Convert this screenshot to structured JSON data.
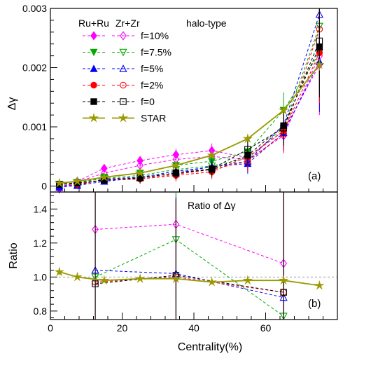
{
  "chart_data": [
    {
      "type": "line",
      "panel": "top",
      "ylabel": "Δγ",
      "xlabel": "",
      "panel_tag": "(a)",
      "xlim": [
        0,
        80
      ],
      "ylim": [
        -0.0001,
        0.003
      ],
      "xticks": [
        0,
        20,
        40,
        60
      ],
      "xtick_labels": [
        "",
        "",
        "",
        ""
      ],
      "yticks": [
        0,
        0.001,
        0.002,
        0.003
      ],
      "ytick_labels": [
        "0",
        "0.001",
        "0.002",
        "0.003"
      ],
      "legend": {
        "placement": "top-left",
        "col_headers": [
          "Ru+Ru",
          "Zr+Zr",
          "halo-type"
        ],
        "rows": [
          {
            "label": "f=10%",
            "color": "#ff00ff",
            "ru_marker": "diamond",
            "zr_marker": "diamond-open"
          },
          {
            "label": "f=7.5%",
            "color": "#00aa00",
            "ru_marker": "triangle-down",
            "zr_marker": "triangle-down-open"
          },
          {
            "label": "f=5%",
            "color": "#0000ff",
            "ru_marker": "triangle-up",
            "zr_marker": "triangle-up-open"
          },
          {
            "label": "f=2%",
            "color": "#ff0000",
            "ru_marker": "circle",
            "zr_marker": "circle-open"
          },
          {
            "label": "f=0",
            "color": "#000000",
            "ru_marker": "square",
            "zr_marker": "square-open"
          },
          {
            "label": "STAR",
            "color": "#999900",
            "ru_marker": "star",
            "zr_marker": "star"
          }
        ]
      },
      "series": [
        {
          "name": "Ru+Ru f=10%",
          "color": "#ff00ff",
          "marker": "diamond",
          "dashed": true,
          "x": [
            2.5,
            7.5,
            15,
            25,
            35,
            45,
            55,
            65,
            75
          ],
          "y": [
            -5e-05,
            8e-05,
            0.0003,
            0.00043,
            0.00053,
            0.0006,
            0.00048,
            0.00093,
            0.00205
          ],
          "err": [
            3e-05,
            3e-05,
            4e-05,
            8e-05,
            0.0001,
            0.00012,
            0.00017,
            0.0003,
            0.00085
          ]
        },
        {
          "name": "Zr+Zr f=10%",
          "color": "#ff00ff",
          "marker": "diamond-open",
          "dashed": true,
          "x": [
            2.5,
            7.5,
            15,
            25,
            35,
            45,
            55,
            65,
            75
          ],
          "y": [
            -4e-05,
            7e-05,
            0.00022,
            0.00035,
            0.00045,
            0.0005,
            0.00045,
            0.00085,
            0.0022
          ],
          "err": [
            3e-05,
            3e-05,
            4e-05,
            8e-05,
            0.0001,
            0.00012,
            0.00017,
            0.0003,
            0.00085
          ]
        },
        {
          "name": "Ru+Ru f=7.5%",
          "color": "#00aa00",
          "marker": "triangle-down",
          "dashed": true,
          "x": [
            2.5,
            7.5,
            15,
            25,
            35,
            45,
            55,
            65,
            75
          ],
          "y": [
            3e-05,
            6e-05,
            0.00015,
            0.00022,
            0.00035,
            0.00042,
            0.00058,
            0.00128,
            0.00225
          ],
          "err": [
            3e-05,
            3e-05,
            4e-05,
            8e-05,
            0.0001,
            0.00012,
            0.00017,
            0.0003,
            0.00085
          ]
        },
        {
          "name": "Zr+Zr f=7.5%",
          "color": "#00aa00",
          "marker": "triangle-down-open",
          "dashed": true,
          "x": [
            2.5,
            7.5,
            15,
            25,
            35,
            45,
            55,
            65,
            75
          ],
          "y": [
            3e-05,
            6e-05,
            0.00013,
            0.00018,
            0.00028,
            0.00034,
            0.00047,
            0.00098,
            0.0027
          ],
          "err": [
            3e-05,
            3e-05,
            4e-05,
            8e-05,
            0.0001,
            0.00012,
            0.00017,
            0.0003,
            0.00085
          ]
        },
        {
          "name": "Ru+Ru f=5%",
          "color": "#0000ff",
          "marker": "triangle-up",
          "dashed": true,
          "x": [
            2.5,
            7.5,
            15,
            25,
            35,
            45,
            55,
            65,
            75
          ],
          "y": [
            -2e-05,
            1e-05,
            8e-05,
            0.00014,
            0.00022,
            0.00033,
            0.00038,
            0.0009,
            0.0021
          ],
          "err": [
            3e-05,
            3e-05,
            4e-05,
            8e-05,
            0.0001,
            0.00012,
            0.00017,
            0.0003,
            0.00085
          ]
        },
        {
          "name": "Zr+Zr f=5%",
          "color": "#0000ff",
          "marker": "triangle-up-open",
          "dashed": true,
          "x": [
            2.5,
            7.5,
            15,
            25,
            35,
            45,
            55,
            65,
            75
          ],
          "y": [
            1e-05,
            1e-05,
            0.00012,
            0.00015,
            0.00025,
            0.00032,
            0.00042,
            0.00103,
            0.0029
          ],
          "err": [
            3e-05,
            3e-05,
            4e-05,
            8e-05,
            0.0001,
            0.00012,
            0.00017,
            0.0003,
            0.00085
          ]
        },
        {
          "name": "Ru+Ru f=2%",
          "color": "#ff0000",
          "marker": "circle",
          "dashed": true,
          "x": [
            2.5,
            7.5,
            15,
            25,
            35,
            45,
            55,
            65,
            75
          ],
          "y": [
            3e-05,
            3e-05,
            0.0001,
            0.00012,
            0.00018,
            0.00024,
            0.0005,
            0.00093,
            0.00225
          ],
          "err": [
            3e-05,
            3e-05,
            4e-05,
            8e-05,
            0.0001,
            0.00012,
            0.00017,
            0.0003,
            0.00085
          ]
        },
        {
          "name": "Zr+Zr f=2%",
          "color": "#ff0000",
          "marker": "circle-open",
          "dashed": true,
          "x": [
            2.5,
            7.5,
            15,
            25,
            35,
            45,
            55,
            65,
            75
          ],
          "y": [
            3e-05,
            3e-05,
            0.0001,
            0.00012,
            0.0002,
            0.00028,
            0.00042,
            0.00088,
            0.00265
          ],
          "err": [
            3e-05,
            3e-05,
            4e-05,
            8e-05,
            0.0001,
            0.00012,
            0.00017,
            0.0003,
            0.00085
          ]
        },
        {
          "name": "Ru+Ru f=0",
          "color": "#000000",
          "marker": "square",
          "dashed": true,
          "x": [
            2.5,
            7.5,
            15,
            25,
            35,
            45,
            55,
            65,
            75
          ],
          "y": [
            3e-05,
            5e-05,
            0.0001,
            0.00014,
            0.00022,
            0.00028,
            0.00052,
            0.00102,
            0.00235
          ],
          "err": [
            3e-05,
            3e-05,
            4e-05,
            8e-05,
            0.0001,
            0.00012,
            0.00017,
            0.0003,
            0.00085
          ]
        },
        {
          "name": "Zr+Zr f=0",
          "color": "#000000",
          "marker": "square-open",
          "dashed": true,
          "x": [
            2.5,
            7.5,
            15,
            25,
            35,
            45,
            55,
            65,
            75
          ],
          "y": [
            3e-05,
            5e-05,
            0.0001,
            0.00014,
            0.00022,
            0.00029,
            0.00062,
            0.00098,
            0.00245
          ],
          "err": [
            3e-05,
            3e-05,
            4e-05,
            8e-05,
            0.0001,
            0.00012,
            0.00017,
            0.0003,
            0.00085
          ]
        },
        {
          "name": "STAR",
          "color": "#999900",
          "marker": "star",
          "dashed": false,
          "x": [
            2.5,
            7.5,
            15,
            25,
            35,
            45,
            55,
            65,
            75
          ],
          "y": [
            5e-05,
            8e-05,
            0.00015,
            0.00022,
            0.00035,
            0.00052,
            0.0008,
            0.00128,
            0.00205
          ],
          "err": [
            1e-05,
            1e-05,
            2e-05,
            2e-05,
            3e-05,
            3e-05,
            4e-05,
            5e-05,
            0.0001
          ]
        }
      ]
    },
    {
      "type": "line",
      "panel": "bottom",
      "title": "Ratio of Δγ",
      "ylabel": "Ratio",
      "xlabel": "Centrality(%)",
      "panel_tag": "(b)",
      "xlim": [
        0,
        80
      ],
      "ylim": [
        0.75,
        1.5
      ],
      "reference_line": 1.0,
      "xticks": [
        0,
        20,
        40,
        60
      ],
      "xtick_labels": [
        "0",
        "20",
        "40",
        "60"
      ],
      "yticks": [
        0.8,
        1.0,
        1.2,
        1.4
      ],
      "ytick_labels": [
        "0.8",
        "1.0",
        "1.2",
        "1.4"
      ],
      "series": [
        {
          "name": "f=10%",
          "color": "#ff00ff",
          "marker": "diamond-open",
          "dashed": true,
          "x": [
            12.5,
            35,
            65
          ],
          "y": [
            1.28,
            1.31,
            1.08
          ],
          "err": [
            0.9,
            0.45,
            0.9
          ]
        },
        {
          "name": "f=7.5%",
          "color": "#00aa00",
          "marker": "triangle-down-open",
          "dashed": true,
          "x": [
            12.5,
            35,
            65
          ],
          "y": [
            1.0,
            1.22,
            0.77
          ],
          "err": [
            0.9,
            0.45,
            0.9
          ]
        },
        {
          "name": "f=5%",
          "color": "#0000ff",
          "marker": "triangle-up-open",
          "dashed": true,
          "x": [
            12.5,
            35,
            65
          ],
          "y": [
            1.04,
            1.02,
            0.88
          ],
          "err": [
            0.9,
            0.45,
            0.9
          ]
        },
        {
          "name": "f=2%",
          "color": "#ff0000",
          "marker": "circle-open",
          "dashed": true,
          "x": [
            12.5,
            35,
            65
          ],
          "y": [
            0.97,
            1.0,
            0.91
          ],
          "err": [
            0.9,
            0.45,
            0.9
          ]
        },
        {
          "name": "f=0",
          "color": "#000000",
          "marker": "square-open",
          "dashed": true,
          "x": [
            12.5,
            35,
            65
          ],
          "y": [
            0.96,
            1.01,
            0.91
          ],
          "err": [
            0.9,
            0.45,
            0.9
          ]
        },
        {
          "name": "STAR",
          "color": "#999900",
          "marker": "star",
          "dashed": false,
          "x": [
            2.5,
            7.5,
            15,
            25,
            35,
            45,
            55,
            65,
            75
          ],
          "y": [
            1.03,
            1.0,
            0.98,
            0.99,
            0.99,
            0.97,
            0.98,
            0.98,
            0.95
          ],
          "err": [
            0.02,
            0.01,
            0.01,
            0.01,
            0.01,
            0.01,
            0.01,
            0.01,
            0.01
          ]
        }
      ]
    }
  ]
}
